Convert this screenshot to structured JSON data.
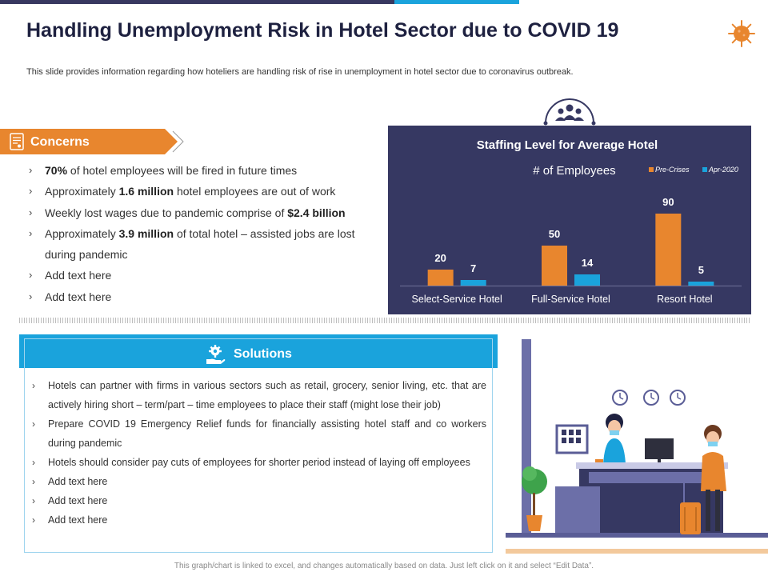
{
  "title": "Handling Unemployment Risk in Hotel Sector due to COVID 19",
  "subtitle": "This slide provides information regarding how hoteliers are handling risk of rise in unemployment in hotel sector due to coronavirus outbreak.",
  "concerns": {
    "heading": "Concerns",
    "items": [
      {
        "pre": "",
        "bold": "70%",
        "post": " of hotel employees will be fired in future times"
      },
      {
        "pre": "Approximately ",
        "bold": "1.6 million",
        "post": " hotel employees are out of work"
      },
      {
        "pre": "Weekly lost wages due to pandemic comprise of ",
        "bold": "$2.4 billion",
        "post": ""
      },
      {
        "pre": "Approximately ",
        "bold": "3.9 million",
        "post": " of total hotel – assisted jobs are lost during pandemic"
      },
      {
        "pre": "Add text here",
        "bold": "",
        "post": ""
      },
      {
        "pre": "Add text here",
        "bold": "",
        "post": ""
      }
    ]
  },
  "solutions": {
    "heading": "Solutions",
    "items": [
      "Hotels can partner with firms in various sectors such as retail, grocery, senior living, etc. that are actively hiring short – term/part – time employees to place their staff (might lose their job)",
      "Prepare COVID 19 Emergency Relief funds for financially assisting hotel staff and co workers during pandemic",
      "Hotels should consider pay cuts of employees for shorter period instead of laying off employees",
      "Add text here",
      "Add text here",
      "Add text here"
    ]
  },
  "chart_data": {
    "type": "bar",
    "title": "Staffing Level for Average Hotel",
    "subtitle": "# of Employees",
    "categories": [
      "Select-Service Hotel",
      "Full-Service Hotel",
      "Resort Hotel"
    ],
    "series": [
      {
        "name": "Pre-Crises",
        "values": [
          20,
          50,
          90
        ],
        "color": "#e8862e"
      },
      {
        "name": "Apr-2020",
        "values": [
          7,
          14,
          5
        ],
        "color": "#1aa3dc"
      }
    ],
    "legend_position": "top-right",
    "ylim": [
      0,
      100
    ],
    "grid": false,
    "background": "#363862"
  },
  "footer": "This graph/chart is linked to excel, and changes automatically based on data. Just left click on it and select “Edit Data”.",
  "colors": {
    "accent_orange": "#e8862e",
    "accent_blue": "#1aa3dc",
    "navy": "#363862"
  },
  "icons": [
    "virus-icon",
    "document-icon",
    "people-group-icon",
    "hand-gear-icon"
  ]
}
